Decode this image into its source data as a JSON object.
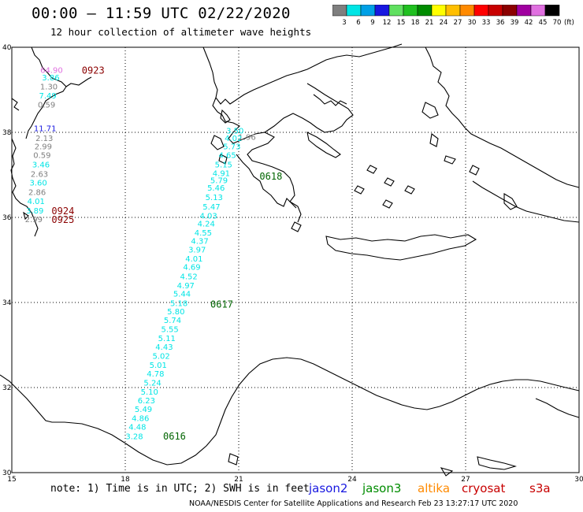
{
  "header": {
    "title": "00:00 – 11:59 UTC 02/22/2020",
    "subtitle": "12 hour collection of altimeter wave heights"
  },
  "colorbar": {
    "unit": "(ft)",
    "levels": [
      {
        "label": "3",
        "color": "#7f7f7f"
      },
      {
        "label": "6",
        "color": "#00e5e5"
      },
      {
        "label": "9",
        "color": "#00a0e6"
      },
      {
        "label": "12",
        "color": "#1818e0"
      },
      {
        "label": "15",
        "color": "#60e060"
      },
      {
        "label": "18",
        "color": "#20c020"
      },
      {
        "label": "21",
        "color": "#008c00"
      },
      {
        "label": "24",
        "color": "#ffff00"
      },
      {
        "label": "27",
        "color": "#ffbf00"
      },
      {
        "label": "30",
        "color": "#ff8a00"
      },
      {
        "label": "33",
        "color": "#ff0000"
      },
      {
        "label": "36",
        "color": "#c80000"
      },
      {
        "label": "39",
        "color": "#8b0000"
      },
      {
        "label": "42",
        "color": "#a000a0"
      },
      {
        "label": "45",
        "color": "#e070e0"
      },
      {
        "label": "70",
        "color": "#000000"
      }
    ]
  },
  "axes": {
    "lon_labels": [
      "15",
      "18",
      "21",
      "24",
      "27",
      "30"
    ],
    "lat_labels": [
      "40",
      "38",
      "36",
      "34",
      "32",
      "30"
    ]
  },
  "wave_heights": [
    {
      "lon": 16.05,
      "lat": 39.47,
      "value": "64.90",
      "color": "#e070e0"
    },
    {
      "lon": 16.03,
      "lat": 39.3,
      "value": "3.86",
      "color": "#00e5e5"
    },
    {
      "lon": 15.98,
      "lat": 39.08,
      "value": "1.30",
      "color": "#7f7f7f"
    },
    {
      "lon": 15.95,
      "lat": 38.87,
      "value": "7.49",
      "color": "#00e5e5"
    },
    {
      "lon": 15.92,
      "lat": 38.66,
      "value": "0.59",
      "color": "#7f7f7f"
    },
    {
      "lon": 15.88,
      "lat": 38.1,
      "value": "11.71",
      "color": "#1818e0"
    },
    {
      "lon": 15.86,
      "lat": 37.87,
      "value": "2.13",
      "color": "#7f7f7f"
    },
    {
      "lon": 15.83,
      "lat": 37.68,
      "value": "2.99",
      "color": "#7f7f7f"
    },
    {
      "lon": 15.8,
      "lat": 37.47,
      "value": "0.59",
      "color": "#7f7f7f"
    },
    {
      "lon": 15.77,
      "lat": 37.25,
      "value": "3.46",
      "color": "#00e5e5"
    },
    {
      "lon": 15.73,
      "lat": 37.03,
      "value": "2.63",
      "color": "#7f7f7f"
    },
    {
      "lon": 15.7,
      "lat": 36.82,
      "value": "3.60",
      "color": "#00e5e5"
    },
    {
      "lon": 15.67,
      "lat": 36.6,
      "value": "2.86",
      "color": "#7f7f7f"
    },
    {
      "lon": 15.64,
      "lat": 36.39,
      "value": "4.01",
      "color": "#00e5e5"
    },
    {
      "lon": 15.61,
      "lat": 36.17,
      "value": "3.89",
      "color": "#00e5e5"
    },
    {
      "lon": 15.58,
      "lat": 35.96,
      "value": "2.99",
      "color": "#7f7f7f"
    },
    {
      "lon": 21.22,
      "lat": 37.9,
      "value": "1.96",
      "color": "#7f7f7f"
    },
    {
      "lon": 20.9,
      "lat": 38.05,
      "value": "3.50",
      "color": "#00e5e5"
    },
    {
      "lon": 20.86,
      "lat": 37.87,
      "value": "4.02",
      "color": "#00e5e5"
    },
    {
      "lon": 20.82,
      "lat": 37.68,
      "value": "5.73",
      "color": "#00e5e5"
    },
    {
      "lon": 20.7,
      "lat": 37.47,
      "value": "4.65",
      "color": "#00e5e5"
    },
    {
      "lon": 20.6,
      "lat": 37.25,
      "value": "5.15",
      "color": "#00e5e5"
    },
    {
      "lon": 20.54,
      "lat": 37.05,
      "value": "4.91",
      "color": "#00e5e5"
    },
    {
      "lon": 20.48,
      "lat": 36.88,
      "value": "5.79",
      "color": "#00e5e5"
    },
    {
      "lon": 20.4,
      "lat": 36.7,
      "value": "5.46",
      "color": "#00e5e5"
    },
    {
      "lon": 20.35,
      "lat": 36.48,
      "value": "5.13",
      "color": "#00e5e5"
    },
    {
      "lon": 20.28,
      "lat": 36.26,
      "value": "5.47",
      "color": "#00e5e5"
    },
    {
      "lon": 20.2,
      "lat": 36.05,
      "value": "4.03",
      "color": "#00e5e5"
    },
    {
      "lon": 20.14,
      "lat": 35.86,
      "value": "4.24",
      "color": "#00e5e5"
    },
    {
      "lon": 20.06,
      "lat": 35.65,
      "value": "4.55",
      "color": "#00e5e5"
    },
    {
      "lon": 19.97,
      "lat": 35.45,
      "value": "4.37",
      "color": "#00e5e5"
    },
    {
      "lon": 19.9,
      "lat": 35.25,
      "value": "3.97",
      "color": "#00e5e5"
    },
    {
      "lon": 19.82,
      "lat": 35.04,
      "value": "4.01",
      "color": "#00e5e5"
    },
    {
      "lon": 19.76,
      "lat": 34.84,
      "value": "4.69",
      "color": "#00e5e5"
    },
    {
      "lon": 19.68,
      "lat": 34.62,
      "value": "4.52",
      "color": "#00e5e5"
    },
    {
      "lon": 19.6,
      "lat": 34.41,
      "value": "4.97",
      "color": "#00e5e5"
    },
    {
      "lon": 19.5,
      "lat": 34.21,
      "value": "5.44",
      "color": "#00e5e5"
    },
    {
      "lon": 19.42,
      "lat": 33.99,
      "value": "5.18",
      "color": "#00e5e5"
    },
    {
      "lon": 19.34,
      "lat": 33.8,
      "value": "5.80",
      "color": "#00e5e5"
    },
    {
      "lon": 19.25,
      "lat": 33.59,
      "value": "5.74",
      "color": "#00e5e5"
    },
    {
      "lon": 19.18,
      "lat": 33.38,
      "value": "5.55",
      "color": "#00e5e5"
    },
    {
      "lon": 19.1,
      "lat": 33.17,
      "value": "5.11",
      "color": "#00e5e5"
    },
    {
      "lon": 19.03,
      "lat": 32.96,
      "value": "4.43",
      "color": "#00e5e5"
    },
    {
      "lon": 18.95,
      "lat": 32.75,
      "value": "5.02",
      "color": "#00e5e5"
    },
    {
      "lon": 18.87,
      "lat": 32.54,
      "value": "5.01",
      "color": "#00e5e5"
    },
    {
      "lon": 18.8,
      "lat": 32.33,
      "value": "4.78",
      "color": "#00e5e5"
    },
    {
      "lon": 18.72,
      "lat": 32.12,
      "value": "5.24",
      "color": "#00e5e5"
    },
    {
      "lon": 18.64,
      "lat": 31.91,
      "value": "5.10",
      "color": "#00e5e5"
    },
    {
      "lon": 18.56,
      "lat": 31.7,
      "value": "6.23",
      "color": "#00e5e5"
    },
    {
      "lon": 18.48,
      "lat": 31.5,
      "value": "5.49",
      "color": "#00e5e5"
    },
    {
      "lon": 18.4,
      "lat": 31.29,
      "value": "4.86",
      "color": "#00e5e5"
    },
    {
      "lon": 18.32,
      "lat": 31.08,
      "value": "4.48",
      "color": "#00e5e5"
    },
    {
      "lon": 18.24,
      "lat": 30.86,
      "value": "3.28",
      "color": "#00e5e5"
    }
  ],
  "pass_labels": [
    {
      "lon": 16.85,
      "lat": 39.47,
      "time": "0923",
      "color": "#8b0000"
    },
    {
      "lon": 16.05,
      "lat": 36.17,
      "time": "0924",
      "color": "#8b0000"
    },
    {
      "lon": 16.05,
      "lat": 35.96,
      "time": "0925",
      "color": "#8b0000"
    },
    {
      "lon": 21.55,
      "lat": 36.98,
      "time": "0618",
      "color": "#006400"
    },
    {
      "lon": 20.25,
      "lat": 33.97,
      "time": "0617",
      "color": "#006400"
    },
    {
      "lon": 19.0,
      "lat": 30.87,
      "time": "0616",
      "color": "#006400"
    }
  ],
  "footer": {
    "note": "note: 1) Time is in UTC; 2) SWH is in feet",
    "satellites": [
      {
        "name": "jason2",
        "color": "#1818e0"
      },
      {
        "name": "jason3",
        "color": "#008c00"
      },
      {
        "name": "altika",
        "color": "#ff8a00"
      },
      {
        "name": "cryosat",
        "color": "#c80000"
      },
      {
        "name": "s3a",
        "color": "#c80000"
      }
    ],
    "credit": "NOAA/NESDIS Center for Satellite Applications and Research   Feb 23 13:27:17 UTC 2020"
  }
}
